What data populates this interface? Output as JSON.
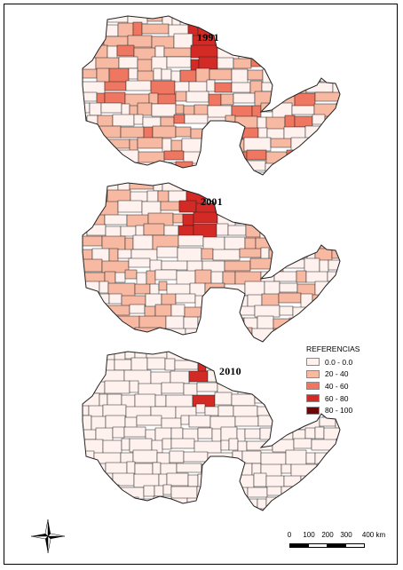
{
  "maps": [
    {
      "year": "1991"
    },
    {
      "year": "2001"
    },
    {
      "year": "2010"
    }
  ],
  "legend": {
    "title": "REFERENCIAS",
    "classes": [
      {
        "label": "0.0 - 0.0",
        "color": "#fff2ee"
      },
      {
        "label": "20 - 40",
        "color": "#f8b9a3"
      },
      {
        "label": "40 - 60",
        "color": "#ef7660"
      },
      {
        "label": "60 - 80",
        "color": "#d42a26"
      },
      {
        "label": "80 - 100",
        "color": "#6e0608"
      }
    ]
  },
  "scale_bar": {
    "ticks": [
      "0",
      "100",
      "200",
      "300",
      "400 km"
    ]
  },
  "compass": {
    "icon": "north-arrow-star-icon"
  },
  "colors": {
    "boundary": "#222222",
    "frame": "#000000"
  }
}
